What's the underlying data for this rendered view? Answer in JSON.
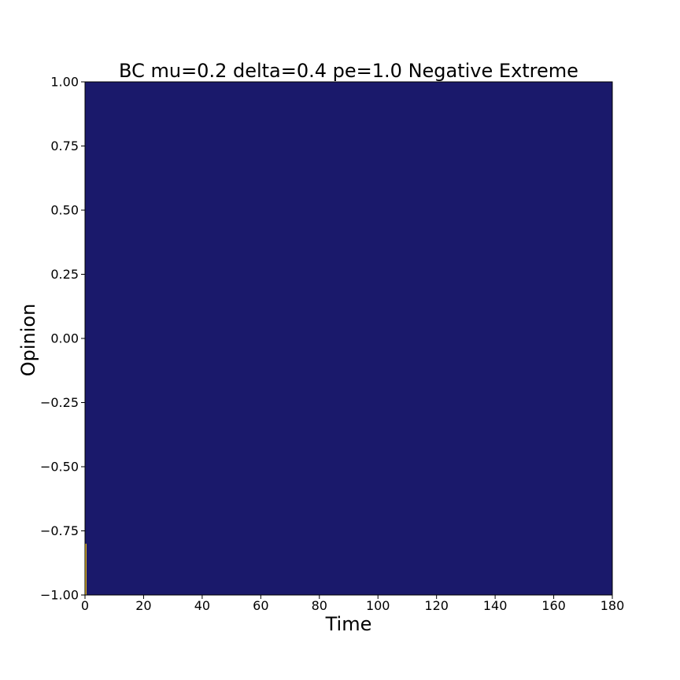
{
  "chart_data": {
    "type": "heatmap",
    "title": "BC mu=0.2 delta=0.4 pe=1.0 Negative Extreme",
    "xlabel": "Time",
    "ylabel": "Opinion",
    "xlim": [
      0,
      180
    ],
    "ylim": [
      -1.0,
      1.0
    ],
    "xticks": [
      "0",
      "20",
      "40",
      "60",
      "80",
      "100",
      "120",
      "140",
      "160",
      "180"
    ],
    "yticks": [
      "1.00",
      "0.75",
      "0.50",
      "0.25",
      "0.00",
      "−0.25",
      "−0.50",
      "−0.75",
      "−1.00"
    ],
    "grid": false,
    "background_color": "#1a196b",
    "highlight_color": "#f3c623",
    "highlight_region": {
      "x": [
        0,
        0.5
      ],
      "y": [
        -1.0,
        -0.8
      ]
    }
  }
}
